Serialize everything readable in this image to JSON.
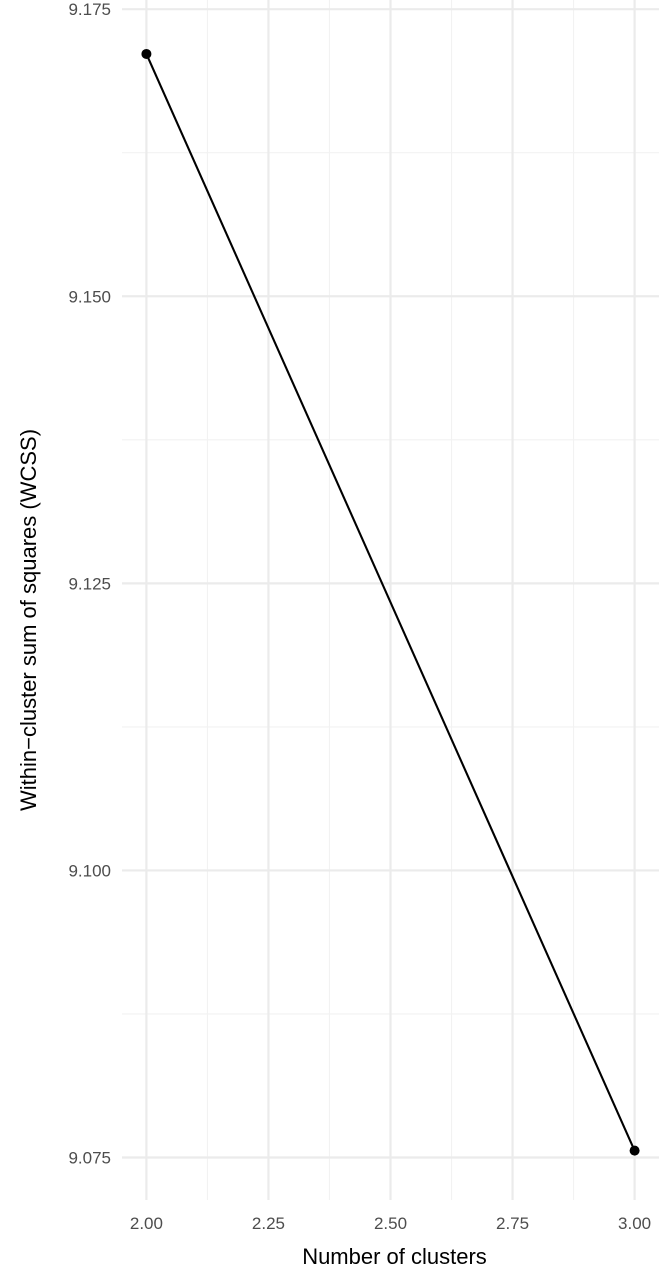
{
  "chart_data": {
    "type": "line",
    "title": "",
    "xlabel": "Number of clusters",
    "ylabel": "Within−cluster sum of squares (WCSS)",
    "x": [
      2,
      3
    ],
    "series": [
      {
        "values": [
          9.1711,
          9.0756
        ]
      }
    ],
    "xlim": [
      1.95,
      3.05
    ],
    "ylim": [
      9.0713,
      9.1758
    ],
    "x_ticks": [
      2.0,
      2.25,
      2.5,
      2.75,
      3.0
    ],
    "x_tick_labels": [
      "2.00",
      "2.25",
      "2.50",
      "2.75",
      "3.00"
    ],
    "y_ticks": [
      9.075,
      9.1,
      9.125,
      9.15,
      9.175
    ],
    "y_tick_labels": [
      "9.075",
      "9.100",
      "9.125",
      "9.150",
      "9.175"
    ],
    "x_minor_ticks": [
      2.125,
      2.375,
      2.625,
      2.875
    ],
    "y_minor_ticks": [
      9.0875,
      9.1125,
      9.1375,
      9.1625
    ],
    "grid": true,
    "legend": "none",
    "colors": {
      "line": "#000000",
      "point": "#000000",
      "grid_major": "#ebebeb",
      "grid_minor": "#f2f2f2",
      "tick_text": "#4d4d4d",
      "axis_title": "#000000",
      "background": "#ffffff"
    }
  }
}
